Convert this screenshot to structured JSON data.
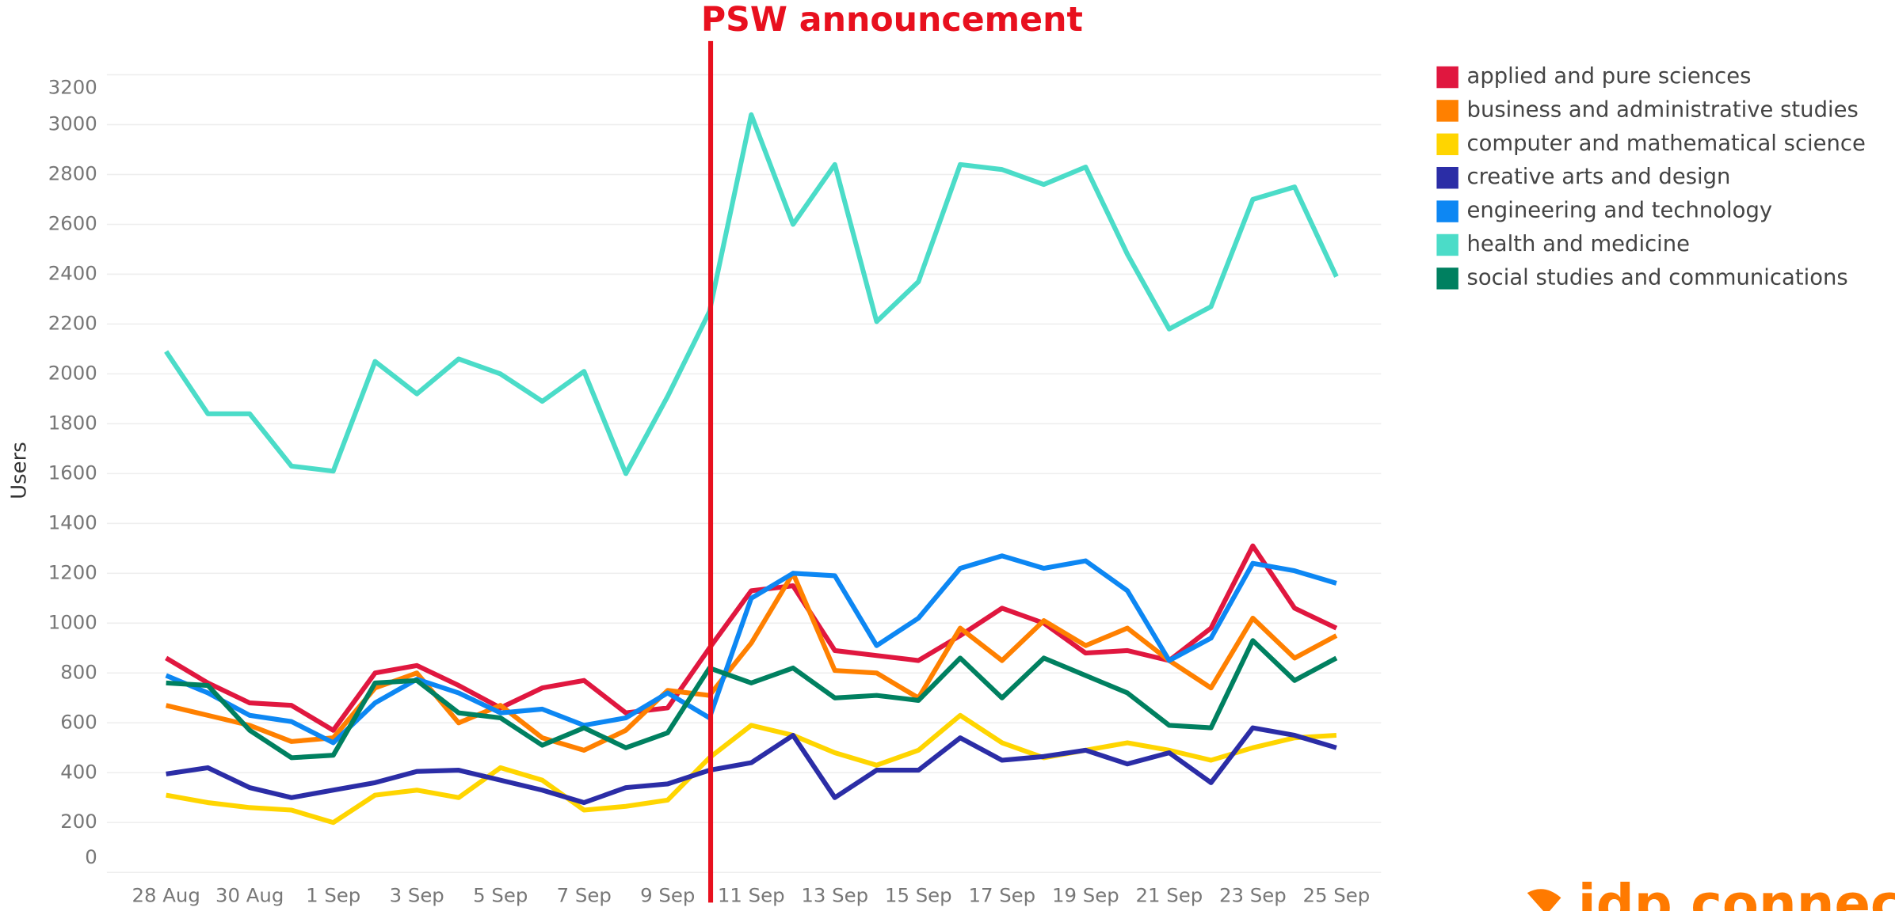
{
  "chart_data": {
    "type": "line",
    "annotation": "PSW announcement",
    "y_label": "Users",
    "brand": "idp connect",
    "categories": [
      "28 Aug",
      null,
      "30 Aug",
      null,
      "1 Sep",
      null,
      "3 Sep",
      null,
      "5 Sep",
      null,
      "7 Sep",
      null,
      "9 Sep",
      null,
      "11 Sep",
      null,
      "13 Sep",
      null,
      "15 Sep",
      null,
      "17 Sep",
      null,
      "19 Sep",
      null,
      "21 Sep",
      null,
      "23 Sep",
      null,
      "25 Sep"
    ],
    "ylim": [
      0,
      3200
    ],
    "yticks": [
      0,
      200,
      400,
      600,
      800,
      1000,
      1200,
      1400,
      1600,
      1800,
      2000,
      2200,
      2400,
      2600,
      2800,
      3000,
      3200
    ],
    "grid": true,
    "legend": "right",
    "series": [
      {
        "name": "applied and pure sciences",
        "color": "#e0173f",
        "values": [
          860,
          760,
          680,
          670,
          570,
          800,
          830,
          750,
          660,
          740,
          770,
          640,
          660,
          900,
          1130,
          1150,
          890,
          870,
          850,
          950,
          1060,
          1000,
          880,
          890,
          850,
          980,
          1310,
          1060,
          980
        ]
      },
      {
        "name": "business and administrative studies",
        "color": "#ff8000",
        "values": [
          670,
          630,
          590,
          525,
          540,
          740,
          800,
          600,
          670,
          540,
          490,
          570,
          730,
          710,
          920,
          1200,
          810,
          800,
          700,
          980,
          850,
          1010,
          910,
          980,
          850,
          740,
          1020,
          860,
          950
        ]
      },
      {
        "name": "computer and mathematical science",
        "color": "#ffd500",
        "values": [
          310,
          280,
          260,
          250,
          200,
          310,
          330,
          300,
          420,
          370,
          250,
          265,
          290,
          460,
          590,
          550,
          480,
          430,
          490,
          630,
          520,
          460,
          490,
          520,
          490,
          450,
          500,
          540,
          550
        ]
      },
      {
        "name": "creative arts and design",
        "color": "#2b2da6",
        "values": [
          395,
          420,
          340,
          300,
          330,
          360,
          405,
          410,
          370,
          330,
          280,
          340,
          355,
          410,
          440,
          550,
          300,
          410,
          410,
          540,
          450,
          465,
          490,
          435,
          480,
          360,
          580,
          550,
          500
        ]
      },
      {
        "name": "engineering and technology",
        "color": "#0d87f3",
        "values": [
          790,
          720,
          630,
          605,
          520,
          680,
          775,
          720,
          640,
          655,
          590,
          620,
          720,
          620,
          1100,
          1200,
          1190,
          910,
          1020,
          1220,
          1270,
          1220,
          1250,
          1130,
          850,
          940,
          1240,
          1210,
          1160
        ]
      },
      {
        "name": "health and medicine",
        "color": "#4bdcc8",
        "values": [
          2090,
          1840,
          1840,
          1630,
          1610,
          2050,
          1920,
          2060,
          2000,
          1890,
          2010,
          1600,
          1910,
          2250,
          3040,
          2600,
          2840,
          2210,
          2370,
          2840,
          2820,
          2760,
          2830,
          2480,
          2180,
          2270,
          2700,
          2750,
          2390
        ]
      },
      {
        "name": "social studies and communications",
        "color": "#008060",
        "values": [
          760,
          750,
          570,
          460,
          470,
          760,
          770,
          640,
          620,
          510,
          580,
          500,
          560,
          820,
          760,
          820,
          700,
          710,
          690,
          860,
          700,
          860,
          790,
          720,
          590,
          580,
          930,
          770,
          860
        ]
      }
    ]
  }
}
